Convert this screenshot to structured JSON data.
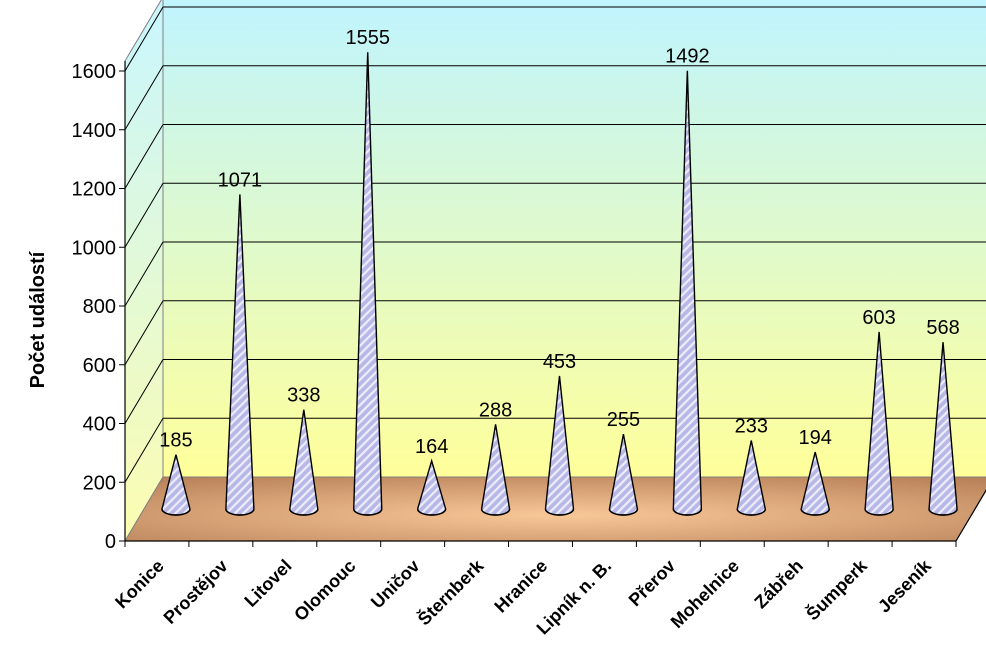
{
  "chart_data": {
    "type": "bar",
    "categories": [
      "Konice",
      "Prostějov",
      "Litovel",
      "Olomouc",
      "Uničov",
      "Šternberk",
      "Hranice",
      "Lipník n. B.",
      "Přerov",
      "Mohelnice",
      "Zábřeh",
      "Šumperk",
      "Jeseník"
    ],
    "values": [
      185,
      1071,
      338,
      1555,
      164,
      288,
      453,
      255,
      1492,
      233,
      194,
      603,
      568
    ],
    "title": "",
    "xlabel": "",
    "ylabel": "Počet událostí",
    "ylim": [
      0,
      1600
    ],
    "yticks": [
      0,
      200,
      400,
      600,
      800,
      1000,
      1200,
      1400,
      1600
    ],
    "grid": true,
    "legend": "none",
    "style": "3d-cone",
    "colors": {
      "wall_top": "#bff4ff",
      "wall_bottom": "#ffff9a",
      "floor_light": "#f8c898",
      "floor_dark": "#b88058",
      "bar_fill": "#b8b8e8",
      "bar_stripe": "#ffffff",
      "bar_outline": "#000000"
    }
  }
}
